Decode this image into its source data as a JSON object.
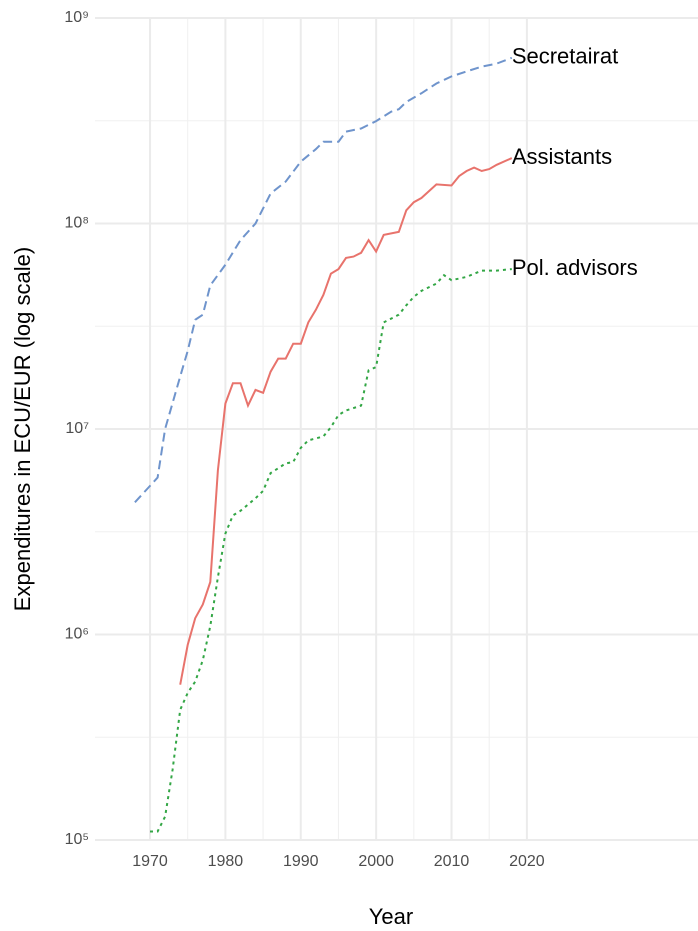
{
  "chart_data": {
    "type": "line",
    "xlabel": "Year",
    "ylabel": "Expenditures in ECU/EUR (log scale)",
    "log_y": true,
    "grid": true,
    "xlim": [
      1962.7,
      2042.7
    ],
    "xticks": [
      1970,
      1980,
      1990,
      2000,
      2010,
      2020
    ],
    "xminor": [
      1975,
      1985,
      1995,
      2005,
      2015
    ],
    "ylim": [
      100000,
      1000000000
    ],
    "yticks": [
      {
        "value": 100000,
        "label": "10⁵"
      },
      {
        "value": 1000000,
        "label": "10⁶"
      },
      {
        "value": 10000000,
        "label": "10⁷"
      },
      {
        "value": 100000000,
        "label": "10⁸"
      },
      {
        "value": 1000000000,
        "label": "10⁹"
      }
    ],
    "yminor": [
      316228,
      3162278,
      31622777,
      316227766
    ],
    "series": [
      {
        "name": "Secretairat",
        "color": "#6f94cc",
        "linetype": "dashed",
        "x": [
          1968,
          1971,
          1972,
          1974,
          1975,
          1976,
          1977,
          1978,
          1980,
          1982,
          1984,
          1986,
          1988,
          1990,
          1992,
          1993,
          1995,
          1996,
          1998,
          2000,
          2002,
          2003,
          2004,
          2006,
          2008,
          2010,
          2012,
          2014,
          2016,
          2018
        ],
        "values": [
          4400000,
          5800000,
          10000000,
          18000000,
          24000000,
          34000000,
          36000000,
          50000000,
          63000000,
          83000000,
          100000000,
          140000000,
          160000000,
          200000000,
          230000000,
          250000000,
          250000000,
          280000000,
          290000000,
          315000000,
          350000000,
          360000000,
          390000000,
          430000000,
          480000000,
          520000000,
          550000000,
          580000000,
          600000000,
          640000000
        ]
      },
      {
        "name": "Assistants",
        "color": "#e8736c",
        "linetype": "solid",
        "x": [
          1974,
          1975,
          1976,
          1977,
          1978,
          1979,
          1980,
          1981,
          1982,
          1983,
          1984,
          1985,
          1986,
          1987,
          1988,
          1989,
          1990,
          1991,
          1992,
          1993,
          1994,
          1995,
          1996,
          1997,
          1998,
          1999,
          2000,
          2001,
          2003,
          2004,
          2005,
          2006,
          2008,
          2010,
          2011,
          2012,
          2013,
          2014,
          2015,
          2016,
          2018
        ],
        "values": [
          570000,
          890000,
          1200000,
          1400000,
          1800000,
          6300000,
          13300000,
          16700000,
          16700000,
          13000000,
          15500000,
          15000000,
          19000000,
          22000000,
          22000000,
          26000000,
          26000000,
          33000000,
          38000000,
          45000000,
          57000000,
          60000000,
          68000000,
          69000000,
          72000000,
          83000000,
          73000000,
          88000000,
          91000000,
          116000000,
          127000000,
          133000000,
          155000000,
          153000000,
          170000000,
          180000000,
          187000000,
          180000000,
          184000000,
          193000000,
          208000000
        ]
      },
      {
        "name": "Pol. advisors",
        "color": "#33a645",
        "linetype": "dotted",
        "x": [
          1970,
          1971,
          1972,
          1973,
          1974,
          1975,
          1976,
          1977,
          1978,
          1979,
          1980,
          1981,
          1982,
          1984,
          1985,
          1986,
          1988,
          1989,
          1990,
          1991,
          1993,
          1994,
          1995,
          1996,
          1998,
          1999,
          2000,
          2001,
          2003,
          2004,
          2005,
          2006,
          2008,
          2009,
          2010,
          2012,
          2014,
          2016,
          2018
        ],
        "values": [
          110000,
          110000,
          130000,
          220000,
          430000,
          520000,
          590000,
          750000,
          1100000,
          1900000,
          3100000,
          3800000,
          4000000,
          4600000,
          5000000,
          6100000,
          6800000,
          6900000,
          8100000,
          8800000,
          9200000,
          10200000,
          11700000,
          12300000,
          13000000,
          19300000,
          20000000,
          33000000,
          36000000,
          40000000,
          44000000,
          47000000,
          51000000,
          56000000,
          53000000,
          55000000,
          59000000,
          59000000,
          60000000
        ]
      }
    ]
  }
}
